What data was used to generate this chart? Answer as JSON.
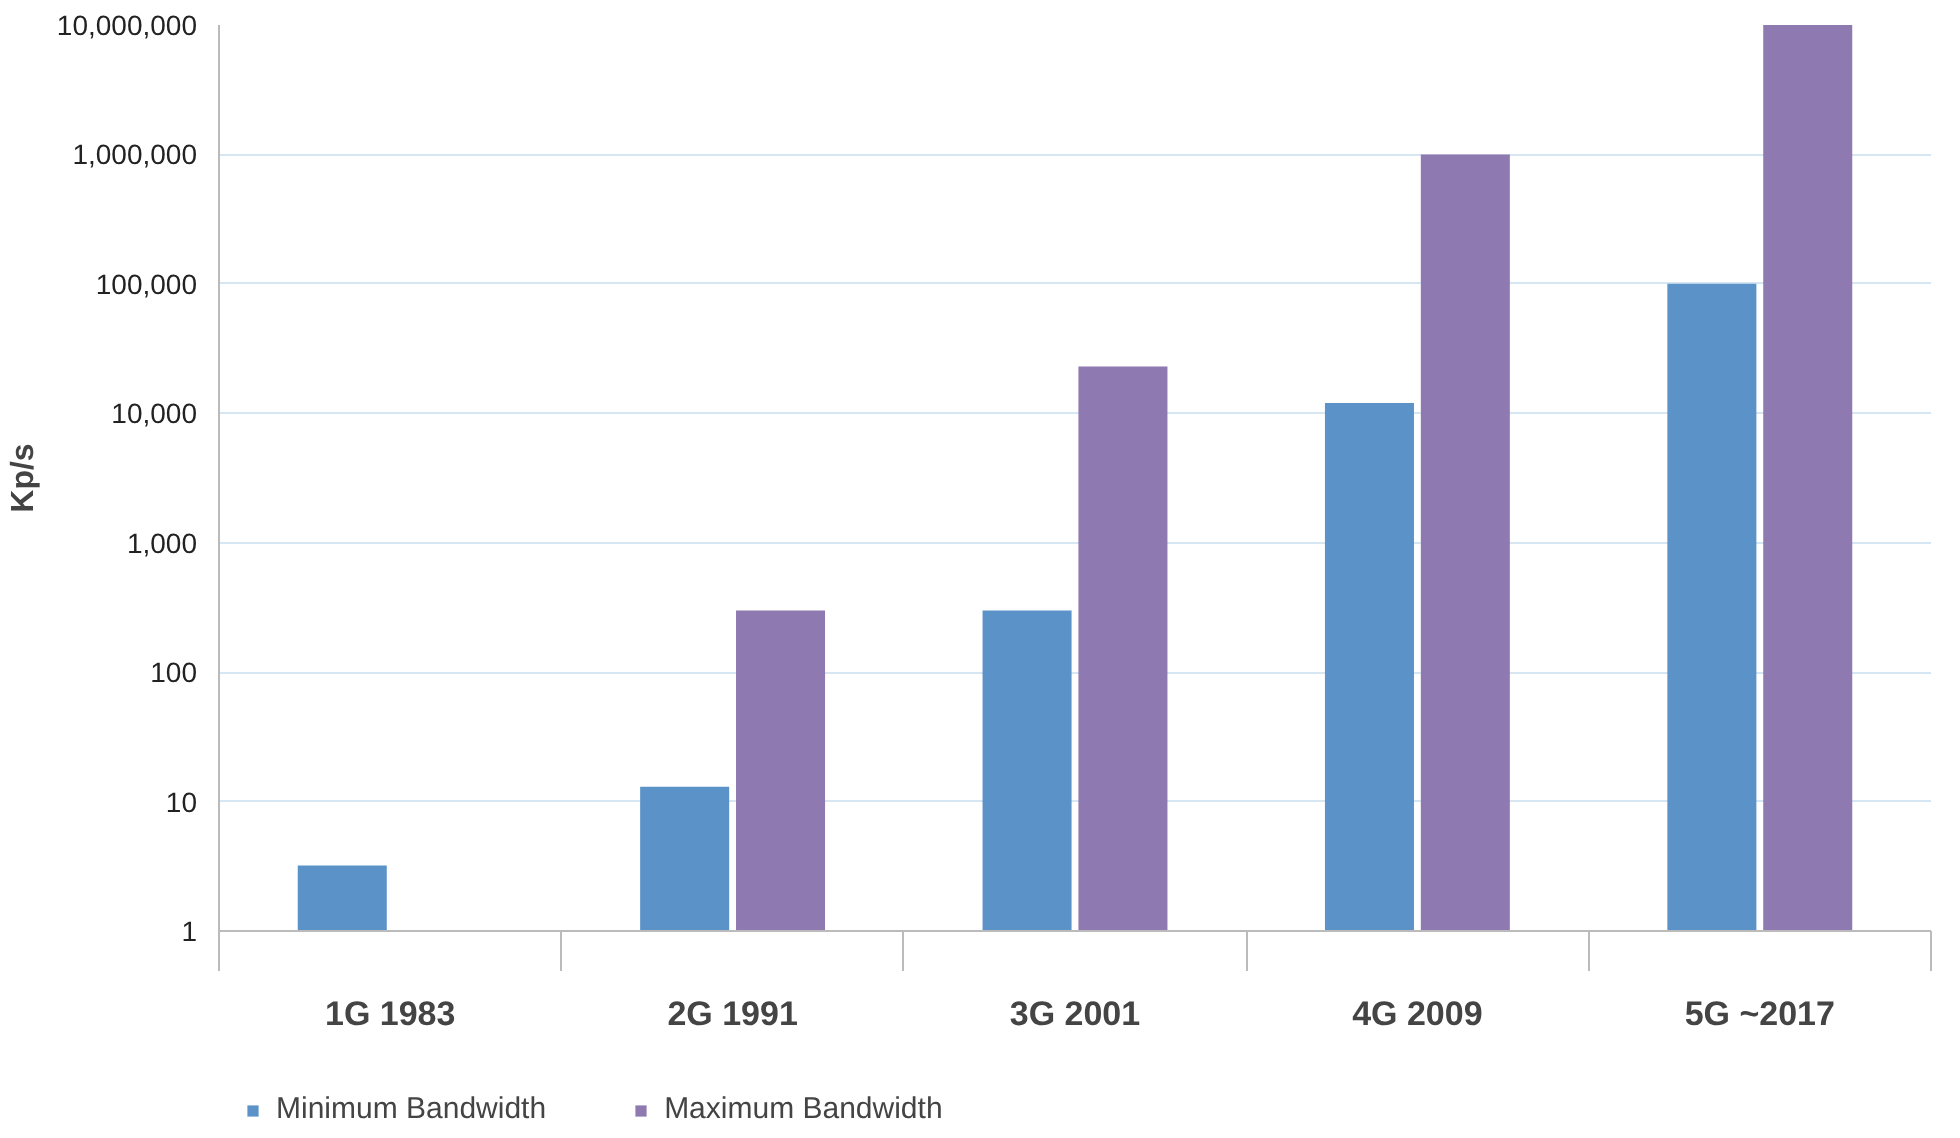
{
  "chart_data": {
    "type": "bar",
    "ylabel": "Kp/s",
    "categories": [
      "1G 1983",
      "2G 1991",
      "3G 2001",
      "4G 2009",
      "5G ~2017"
    ],
    "series": [
      {
        "name": "Minimum Bandwidth",
        "color": "#5b93c8",
        "values": [
          3.2,
          13,
          300,
          12000,
          100000
        ]
      },
      {
        "name": "Maximum Bandwidth",
        "color": "#8e79b0",
        "values": [
          null,
          300,
          23000,
          1000000,
          10000000
        ]
      }
    ],
    "log": "y",
    "ylim": [
      1,
      10000000
    ],
    "yticks": [
      {
        "value": 1,
        "label": "1"
      },
      {
        "value": 10,
        "label": "10"
      },
      {
        "value": 100,
        "label": "100"
      },
      {
        "value": 1000,
        "label": "1,000"
      },
      {
        "value": 10000,
        "label": "10,000"
      },
      {
        "value": 100000,
        "label": "100,000"
      },
      {
        "value": 1000000,
        "label": "1,000,000"
      },
      {
        "value": 10000000,
        "label": "10,000,000"
      }
    ],
    "grid": "y",
    "legend": "bottom left"
  }
}
